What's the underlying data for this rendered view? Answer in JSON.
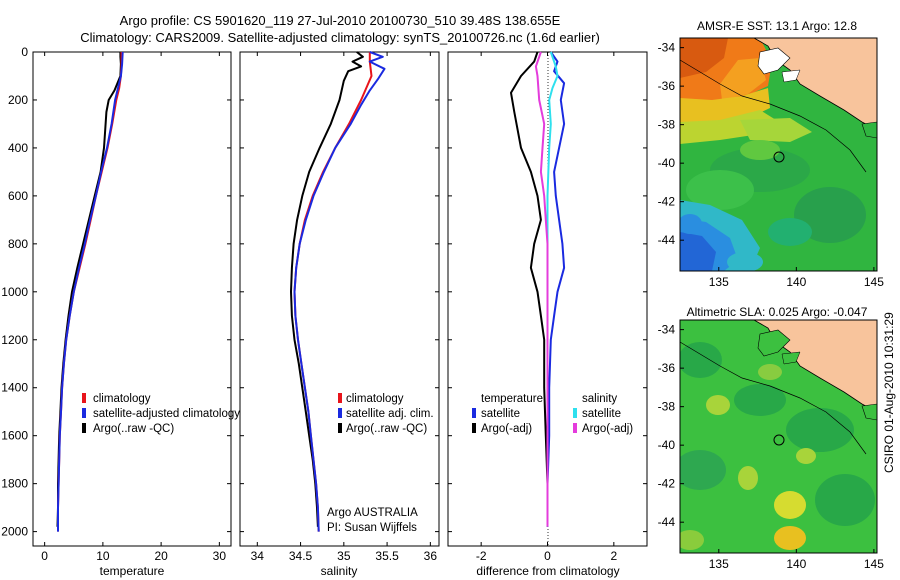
{
  "title_line1": "Argo profile: CS 5901620_119 27-Jul-2010 20100730_510 39.48S 138.655E",
  "title_line2": "Climatology: CARS2009. Satellite-adjusted climatology: synTS_20100726.nc (1.6d earlier)",
  "credit_text": "CSIRO 01-Aug-2010 10:31:29",
  "colors": {
    "red": "#e8141b",
    "blue": "#1a2ae0",
    "black": "#000000",
    "cyan": "#2ee0ee",
    "magenta": "#e43cdc"
  },
  "chart_data": [
    {
      "type": "line",
      "name": "temperature-profile",
      "xlabel": "temperature",
      "xlim": [
        -2,
        32
      ],
      "ylim": [
        0,
        2060
      ],
      "xticks": [
        "0",
        "10",
        "20",
        "30"
      ],
      "xtick_values": [
        0,
        10,
        20,
        30
      ],
      "yticks": [
        "0",
        "200",
        "400",
        "600",
        "800",
        "1000",
        "1200",
        "1400",
        "1600",
        "1800",
        "2000"
      ],
      "ytick_values": [
        0,
        200,
        400,
        600,
        800,
        1000,
        1200,
        1400,
        1600,
        1800,
        2000
      ],
      "legend": {
        "placement": "middle",
        "entries": [
          "climatology",
          "satellite-adjusted climatology",
          "Argo(..raw -QC)"
        ]
      },
      "series": [
        {
          "name": "Argo(..raw -QC)",
          "color": "black",
          "width": 2,
          "points": [
            [
              13,
              0
            ],
            [
              13,
              20
            ],
            [
              13.1,
              50
            ],
            [
              13,
              100
            ],
            [
              12,
              160
            ],
            [
              11,
              200
            ],
            [
              10.6,
              250
            ],
            [
              10.2,
              400
            ],
            [
              9.6,
              500
            ],
            [
              8.6,
              600
            ],
            [
              7.6,
              700
            ],
            [
              6.6,
              800
            ],
            [
              5.6,
              900
            ],
            [
              4.7,
              1000
            ],
            [
              4.1,
              1100
            ],
            [
              3.6,
              1200
            ],
            [
              3.2,
              1300
            ],
            [
              2.9,
              1400
            ],
            [
              2.7,
              1500
            ],
            [
              2.5,
              1600
            ],
            [
              2.4,
              1700
            ],
            [
              2.3,
              1800
            ],
            [
              2.3,
              1900
            ],
            [
              2.2,
              1980
            ]
          ]
        },
        {
          "name": "climatology",
          "color": "red",
          "width": 2,
          "points": [
            [
              13.2,
              0
            ],
            [
              13.2,
              50
            ],
            [
              13.1,
              100
            ],
            [
              12.8,
              150
            ],
            [
              12.3,
              200
            ],
            [
              11.6,
              300
            ],
            [
              10.8,
              400
            ],
            [
              9.8,
              500
            ],
            [
              8.8,
              600
            ],
            [
              7.9,
              700
            ],
            [
              7,
              800
            ],
            [
              6,
              900
            ],
            [
              5,
              1000
            ],
            [
              4.3,
              1100
            ],
            [
              3.7,
              1200
            ],
            [
              3.3,
              1300
            ],
            [
              3,
              1400
            ],
            [
              2.8,
              1500
            ],
            [
              2.6,
              1600
            ],
            [
              2.5,
              1700
            ],
            [
              2.4,
              1800
            ],
            [
              2.3,
              1900
            ],
            [
              2.3,
              2000
            ]
          ]
        },
        {
          "name": "satellite-adjusted climatology",
          "color": "blue",
          "width": 2,
          "points": [
            [
              13.4,
              0
            ],
            [
              13.3,
              50
            ],
            [
              13.1,
              100
            ],
            [
              12.6,
              150
            ],
            [
              12.1,
              200
            ],
            [
              11.5,
              300
            ],
            [
              10.7,
              400
            ],
            [
              9.7,
              500
            ],
            [
              8.8,
              600
            ],
            [
              7.8,
              700
            ],
            [
              6.9,
              800
            ],
            [
              5.9,
              900
            ],
            [
              5,
              1000
            ],
            [
              4.3,
              1100
            ],
            [
              3.7,
              1200
            ],
            [
              3.3,
              1300
            ],
            [
              3,
              1400
            ],
            [
              2.8,
              1500
            ],
            [
              2.6,
              1600
            ],
            [
              2.5,
              1700
            ],
            [
              2.4,
              1800
            ],
            [
              2.3,
              1900
            ],
            [
              2.3,
              2000
            ]
          ]
        }
      ]
    },
    {
      "type": "line",
      "name": "salinity-profile",
      "xlabel": "salinity",
      "xlim": [
        33.8,
        36.1
      ],
      "ylim": [
        0,
        2060
      ],
      "xticks": [
        "34",
        "34.5",
        "35",
        "35.5",
        "36"
      ],
      "xtick_values": [
        34,
        34.5,
        35,
        35.5,
        36
      ],
      "legend": {
        "placement": "middle",
        "entries": [
          "climatology",
          "satellite adj. clim.",
          "Argo(..raw -QC)"
        ]
      },
      "annotation": [
        "Argo AUSTRALIA",
        "PI: Susan Wijffels"
      ],
      "series": [
        {
          "name": "Argo(..raw -QC)",
          "color": "black",
          "width": 2,
          "points": [
            [
              35.15,
              0
            ],
            [
              35.22,
              20
            ],
            [
              35.1,
              40
            ],
            [
              35.2,
              60
            ],
            [
              35.05,
              80
            ],
            [
              35.0,
              120
            ],
            [
              34.95,
              200
            ],
            [
              34.85,
              300
            ],
            [
              34.72,
              400
            ],
            [
              34.6,
              500
            ],
            [
              34.52,
              600
            ],
            [
              34.46,
              700
            ],
            [
              34.42,
              800
            ],
            [
              34.4,
              900
            ],
            [
              34.39,
              1000
            ],
            [
              34.4,
              1100
            ],
            [
              34.43,
              1200
            ],
            [
              34.48,
              1300
            ],
            [
              34.52,
              1400
            ],
            [
              34.56,
              1500
            ],
            [
              34.6,
              1600
            ],
            [
              34.64,
              1700
            ],
            [
              34.67,
              1800
            ],
            [
              34.69,
              1900
            ],
            [
              34.7,
              1980
            ]
          ]
        },
        {
          "name": "climatology",
          "color": "red",
          "width": 2,
          "points": [
            [
              35.3,
              0
            ],
            [
              35.3,
              40
            ],
            [
              35.32,
              100
            ],
            [
              35.2,
              200
            ],
            [
              35.06,
              300
            ],
            [
              34.9,
              400
            ],
            [
              34.76,
              500
            ],
            [
              34.64,
              600
            ],
            [
              34.55,
              700
            ],
            [
              34.49,
              800
            ],
            [
              34.45,
              900
            ],
            [
              34.43,
              1000
            ],
            [
              34.44,
              1100
            ],
            [
              34.47,
              1200
            ],
            [
              34.51,
              1300
            ],
            [
              34.55,
              1400
            ],
            [
              34.59,
              1500
            ],
            [
              34.62,
              1600
            ],
            [
              34.65,
              1700
            ],
            [
              34.68,
              1800
            ],
            [
              34.7,
              1900
            ],
            [
              34.71,
              2000
            ]
          ]
        },
        {
          "name": "satellite adj. clim.",
          "color": "blue",
          "width": 2,
          "points": [
            [
              35.3,
              0
            ],
            [
              35.45,
              20
            ],
            [
              35.3,
              40
            ],
            [
              35.47,
              70
            ],
            [
              35.4,
              110
            ],
            [
              35.3,
              160
            ],
            [
              35.2,
              220
            ],
            [
              35.08,
              300
            ],
            [
              34.9,
              400
            ],
            [
              34.77,
              500
            ],
            [
              34.65,
              600
            ],
            [
              34.56,
              700
            ],
            [
              34.49,
              800
            ],
            [
              34.45,
              900
            ],
            [
              34.43,
              1000
            ],
            [
              34.44,
              1100
            ],
            [
              34.47,
              1200
            ],
            [
              34.51,
              1300
            ],
            [
              34.55,
              1400
            ],
            [
              34.59,
              1500
            ],
            [
              34.62,
              1600
            ],
            [
              34.65,
              1700
            ],
            [
              34.68,
              1800
            ],
            [
              34.7,
              1900
            ],
            [
              34.71,
              2000
            ]
          ]
        }
      ]
    },
    {
      "type": "line",
      "name": "difference-profile",
      "xlabel": "difference from climatology",
      "xlim": [
        -3,
        3
      ],
      "ylim": [
        0,
        2060
      ],
      "xticks": [
        "-2",
        "0",
        "2"
      ],
      "xtick_values": [
        -2,
        0,
        2
      ],
      "legend": {
        "placement": "middle",
        "col1_title": "temperature",
        "col2_title": "salinity",
        "col1": [
          "satellite",
          "Argo(-adj)"
        ],
        "col2": [
          "satellite",
          "Argo(-adj)"
        ]
      },
      "series": [
        {
          "name": "temperature Argo(-adj)",
          "color": "black",
          "width": 2,
          "points": [
            [
              -0.3,
              0
            ],
            [
              -0.4,
              40
            ],
            [
              -0.8,
              100
            ],
            [
              -1.1,
              170
            ],
            [
              -1.0,
              250
            ],
            [
              -0.8,
              400
            ],
            [
              -0.5,
              500
            ],
            [
              -0.3,
              600
            ],
            [
              -0.2,
              700
            ],
            [
              -0.4,
              800
            ],
            [
              -0.5,
              900
            ],
            [
              -0.3,
              1000
            ],
            [
              -0.2,
              1100
            ],
            [
              -0.1,
              1200
            ],
            [
              -0.1,
              1400
            ],
            [
              -0.05,
              1600
            ],
            [
              0,
              1800
            ],
            [
              0,
              1980
            ]
          ]
        },
        {
          "name": "temperature satellite",
          "color": "blue",
          "width": 2,
          "points": [
            [
              0.1,
              0
            ],
            [
              0.3,
              40
            ],
            [
              0.2,
              80
            ],
            [
              0.5,
              130
            ],
            [
              0.4,
              200
            ],
            [
              0.5,
              300
            ],
            [
              0.35,
              400
            ],
            [
              0.2,
              500
            ],
            [
              0.25,
              600
            ],
            [
              0.35,
              700
            ],
            [
              0.45,
              800
            ],
            [
              0.5,
              900
            ],
            [
              0.3,
              1000
            ],
            [
              0.2,
              1100
            ],
            [
              0.1,
              1200
            ],
            [
              0.05,
              1400
            ],
            [
              0.05,
              1600
            ],
            [
              0,
              1800
            ],
            [
              0,
              1980
            ]
          ]
        },
        {
          "name": "salinity satellite",
          "color": "cyan",
          "width": 2,
          "points": [
            [
              0.1,
              0
            ],
            [
              0.25,
              60
            ],
            [
              0.3,
              100
            ],
            [
              0.15,
              150
            ],
            [
              0.05,
              200
            ],
            [
              0.1,
              300
            ],
            [
              0.05,
              400
            ],
            [
              0,
              600
            ],
            [
              0,
              800
            ],
            [
              0,
              1000
            ],
            [
              0,
              1400
            ],
            [
              0,
              1980
            ]
          ]
        },
        {
          "name": "salinity Argo(-adj)",
          "color": "magenta",
          "width": 2,
          "points": [
            [
              -0.2,
              0
            ],
            [
              -0.35,
              60
            ],
            [
              -0.3,
              100
            ],
            [
              -0.25,
              200
            ],
            [
              -0.1,
              300
            ],
            [
              -0.15,
              400
            ],
            [
              -0.2,
              500
            ],
            [
              -0.1,
              600
            ],
            [
              -0.05,
              700
            ],
            [
              0,
              800
            ],
            [
              0,
              1000
            ],
            [
              0,
              1400
            ],
            [
              0,
              1980
            ]
          ]
        }
      ]
    },
    {
      "type": "heatmap",
      "name": "sst-map",
      "title": "AMSR-E SST: 13.1 Argo: 12.8",
      "xlim": [
        132.5,
        145.2
      ],
      "ylim": [
        -45.6,
        -33.5
      ],
      "xticks": [
        "135",
        "140",
        "145"
      ],
      "xtick_values": [
        135,
        140,
        145
      ],
      "yticks": [
        "-34",
        "-36",
        "-38",
        "-40",
        "-42",
        "-44"
      ],
      "ytick_values": [
        -34,
        -36,
        -38,
        -40,
        -42,
        -44
      ],
      "marker": {
        "lon": 138.655,
        "lat": -39.48
      }
    },
    {
      "type": "heatmap",
      "name": "sla-map",
      "title": "Altimetric SLA: 0.025 Argo: -0.047",
      "xlim": [
        132.5,
        145.2
      ],
      "ylim": [
        -45.6,
        -33.5
      ],
      "xticks": [
        "135",
        "140",
        "145"
      ],
      "xtick_values": [
        135,
        140,
        145
      ],
      "yticks": [
        "-34",
        "-36",
        "-38",
        "-40",
        "-42",
        "-44"
      ],
      "ytick_values": [
        -34,
        -36,
        -38,
        -40,
        -42,
        -44
      ],
      "marker": {
        "lon": 138.655,
        "lat": -39.48
      }
    }
  ]
}
